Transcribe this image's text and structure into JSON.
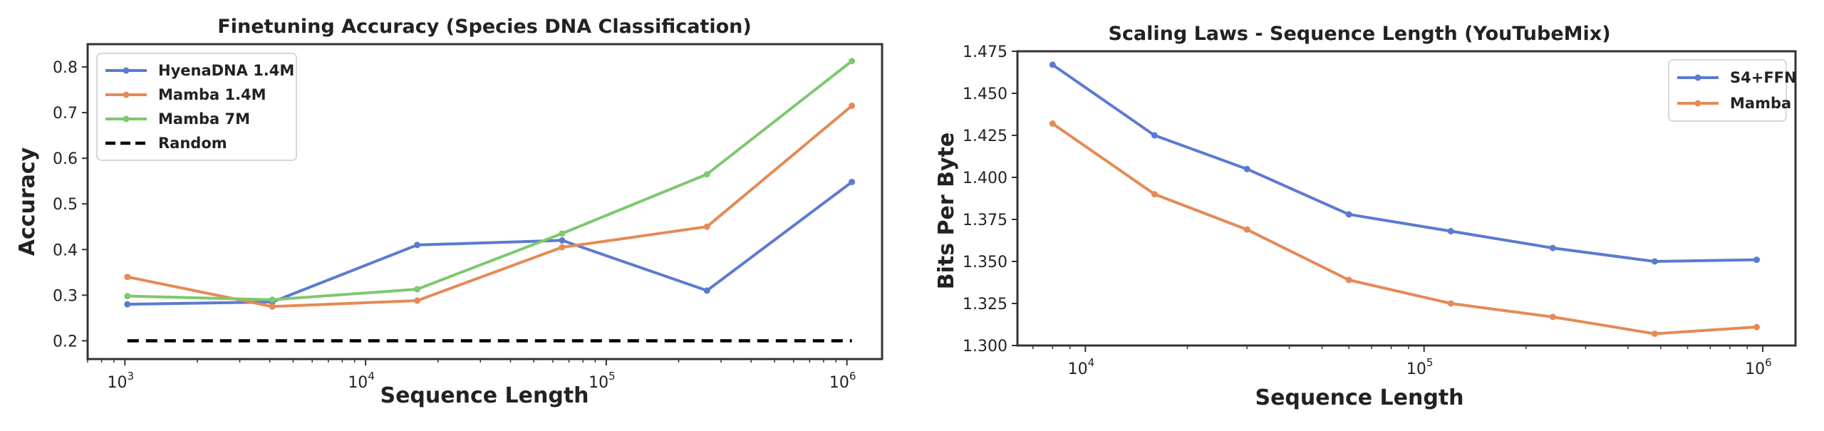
{
  "chart_data": [
    {
      "type": "line",
      "title": "Finetuning Accuracy (Species DNA Classification)",
      "xlabel": "Sequence Length",
      "ylabel": "Accuracy",
      "xscale": "log",
      "xlim": [
        700,
        1400000
      ],
      "ylim": [
        0.16,
        0.85
      ],
      "xticks": [
        {
          "value": 1000,
          "base": "10",
          "exp": "3"
        },
        {
          "value": 10000,
          "base": "10",
          "exp": "4"
        },
        {
          "value": 100000,
          "base": "10",
          "exp": "5"
        },
        {
          "value": 1000000,
          "base": "10",
          "exp": "6"
        }
      ],
      "yticks": [
        {
          "value": 0.2,
          "label": "0.2"
        },
        {
          "value": 0.3,
          "label": "0.3"
        },
        {
          "value": 0.4,
          "label": "0.4"
        },
        {
          "value": 0.5,
          "label": "0.5"
        },
        {
          "value": 0.6,
          "label": "0.6"
        },
        {
          "value": 0.7,
          "label": "0.7"
        },
        {
          "value": 0.8,
          "label": "0.8"
        }
      ],
      "x": [
        1024,
        4096,
        16384,
        65536,
        262144,
        1048576
      ],
      "series": [
        {
          "name": "HyenaDNA 1.4M",
          "color": "#5a7bd1",
          "marker": true,
          "values": [
            0.28,
            0.285,
            0.41,
            0.42,
            0.31,
            0.548
          ]
        },
        {
          "name": "Mamba 1.4M",
          "color": "#e58a56",
          "marker": true,
          "values": [
            0.34,
            0.275,
            0.288,
            0.405,
            0.45,
            0.715
          ]
        },
        {
          "name": "Mamba 7M",
          "color": "#7ec870",
          "marker": true,
          "values": [
            0.298,
            0.29,
            0.313,
            0.435,
            0.565,
            0.813
          ]
        },
        {
          "name": "Random",
          "color": "#000000",
          "dashed": true,
          "marker": false,
          "values": [
            0.2,
            0.2,
            0.2,
            0.2,
            0.2,
            0.2
          ]
        }
      ],
      "grid": false,
      "legend": "top-left"
    },
    {
      "type": "line",
      "title": "Scaling Laws - Sequence Length (YouTubeMix)",
      "xlabel": "Sequence Length",
      "ylabel": "Bits Per Byte",
      "xscale": "log",
      "xlim": [
        6300,
        1250000
      ],
      "ylim": [
        1.3,
        1.475
      ],
      "xticks": [
        {
          "value": 10000,
          "base": "10",
          "exp": "4"
        },
        {
          "value": 100000,
          "base": "10",
          "exp": "5"
        },
        {
          "value": 1000000,
          "base": "10",
          "exp": "6"
        }
      ],
      "yticks": [
        {
          "value": 1.3,
          "label": "1.300"
        },
        {
          "value": 1.325,
          "label": "1.325"
        },
        {
          "value": 1.35,
          "label": "1.350"
        },
        {
          "value": 1.375,
          "label": "1.375"
        },
        {
          "value": 1.4,
          "label": "1.400"
        },
        {
          "value": 1.425,
          "label": "1.425"
        },
        {
          "value": 1.45,
          "label": "1.450"
        },
        {
          "value": 1.475,
          "label": "1.475"
        }
      ],
      "x": [
        8000,
        16000,
        30000,
        60000,
        120000,
        240000,
        480000,
        960000
      ],
      "series": [
        {
          "name": "S4+FFN",
          "color": "#5a7bd1",
          "marker": true,
          "values": [
            1.467,
            1.425,
            1.405,
            1.378,
            1.368,
            1.358,
            1.35,
            1.351
          ]
        },
        {
          "name": "Mamba",
          "color": "#e58a56",
          "marker": true,
          "values": [
            1.432,
            1.39,
            1.369,
            1.339,
            1.325,
            1.317,
            1.307,
            1.311
          ]
        }
      ],
      "grid": false,
      "legend": "top-right"
    }
  ]
}
